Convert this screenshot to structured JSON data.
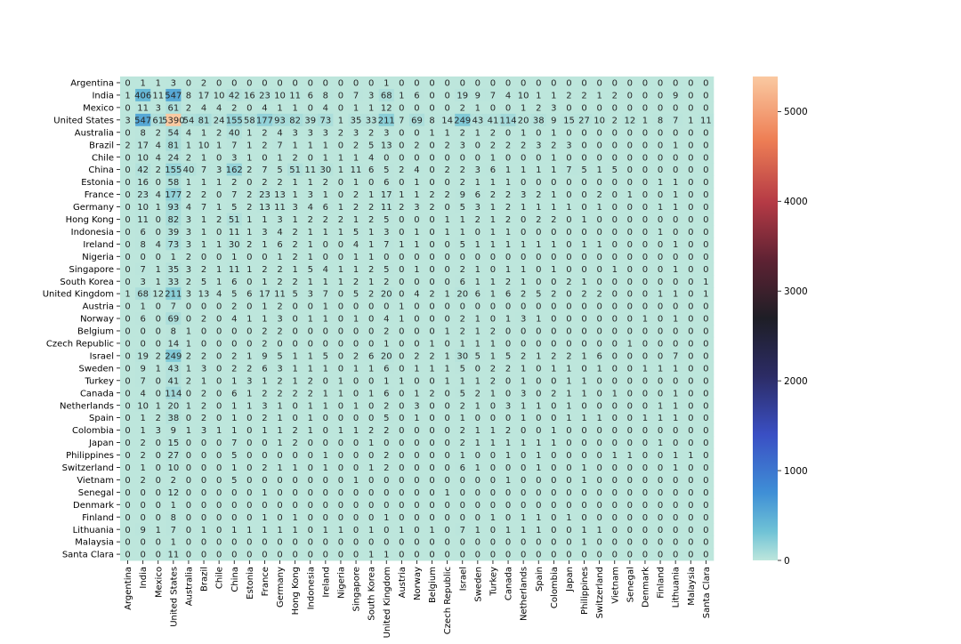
{
  "chart_data": {
    "type": "heatmap",
    "title": "",
    "xlabel": "",
    "ylabel": "",
    "rows": [
      "Argentina",
      "India",
      "Mexico",
      "United States",
      "Australia",
      "Brazil",
      "Chile",
      "China",
      "Estonia",
      "France",
      "Germany",
      "Hong Kong",
      "Indonesia",
      "Ireland",
      "Nigeria",
      "Singapore",
      "South Korea",
      "United Kingdom",
      "Austria",
      "Norway",
      "Belgium",
      "Czech Republic",
      "Israel",
      "Sweden",
      "Turkey",
      "Canada",
      "Netherlands",
      "Spain",
      "Colombia",
      "Japan",
      "Philippines",
      "Switzerland",
      "Vietnam",
      "Senegal",
      "Denmark",
      "Finland",
      "Lithuania",
      "Malaysia",
      "Santa Clara"
    ],
    "columns": [
      "Argentina",
      "India",
      "Mexico",
      "United States",
      "Australia",
      "Brazil",
      "Chile",
      "China",
      "Estonia",
      "France",
      "Germany",
      "Hong Kong",
      "Indonesia",
      "Ireland",
      "Nigeria",
      "Singapore",
      "South Korea",
      "United Kingdom",
      "Austria",
      "Norway",
      "Belgium",
      "Czech Republic",
      "Israel",
      "Sweden",
      "Turkey",
      "Canada",
      "Netherlands",
      "Spain",
      "Colombia",
      "Japan",
      "Philippines",
      "Switzerland",
      "Vietnam",
      "Senegal",
      "Denmark",
      "Finland",
      "Lithuania",
      "Malaysia",
      "Santa Clara"
    ],
    "values": [
      [
        0,
        1,
        1,
        3,
        0,
        2,
        0,
        0,
        0,
        0,
        0,
        0,
        0,
        0,
        0,
        0,
        0,
        1,
        0,
        0,
        0,
        0,
        0,
        0,
        0,
        0,
        0,
        0,
        0,
        0,
        0,
        0,
        0,
        0,
        0,
        0,
        0,
        0,
        0
      ],
      [
        1,
        406,
        11,
        547,
        8,
        17,
        10,
        42,
        16,
        23,
        10,
        11,
        6,
        8,
        0,
        7,
        3,
        68,
        1,
        6,
        0,
        0,
        19,
        9,
        7,
        4,
        10,
        1,
        1,
        2,
        2,
        1,
        2,
        0,
        0,
        0,
        9,
        0,
        0
      ],
      [
        0,
        11,
        3,
        61,
        2,
        4,
        4,
        2,
        0,
        4,
        1,
        1,
        0,
        4,
        0,
        1,
        1,
        12,
        0,
        0,
        0,
        0,
        2,
        1,
        0,
        0,
        1,
        2,
        3,
        0,
        0,
        0,
        0,
        0,
        0,
        0,
        0,
        0,
        0
      ],
      [
        3,
        547,
        61,
        5390,
        54,
        81,
        24,
        155,
        58,
        177,
        93,
        82,
        39,
        73,
        1,
        35,
        33,
        211,
        7,
        69,
        8,
        14,
        249,
        43,
        41,
        114,
        20,
        38,
        9,
        15,
        27,
        10,
        2,
        12,
        1,
        8,
        7,
        1,
        11
      ],
      [
        0,
        8,
        2,
        54,
        4,
        1,
        2,
        40,
        1,
        2,
        4,
        3,
        3,
        3,
        2,
        3,
        2,
        3,
        0,
        0,
        1,
        1,
        2,
        1,
        2,
        0,
        1,
        0,
        1,
        0,
        0,
        0,
        0,
        0,
        0,
        0,
        0,
        0,
        0
      ],
      [
        2,
        17,
        4,
        81,
        1,
        10,
        1,
        7,
        1,
        2,
        7,
        1,
        1,
        1,
        0,
        2,
        5,
        13,
        0,
        2,
        0,
        2,
        3,
        0,
        2,
        2,
        2,
        3,
        2,
        3,
        0,
        0,
        0,
        0,
        0,
        0,
        1,
        0,
        0
      ],
      [
        0,
        10,
        4,
        24,
        2,
        1,
        0,
        3,
        1,
        0,
        1,
        2,
        0,
        1,
        1,
        1,
        4,
        0,
        0,
        0,
        0,
        0,
        0,
        0,
        1,
        0,
        0,
        0,
        1,
        0,
        0,
        0,
        0,
        0,
        0,
        0,
        0,
        0,
        0
      ],
      [
        0,
        42,
        2,
        155,
        40,
        7,
        3,
        162,
        2,
        7,
        5,
        51,
        11,
        30,
        1,
        11,
        6,
        5,
        2,
        4,
        0,
        2,
        2,
        3,
        6,
        1,
        1,
        1,
        1,
        7,
        5,
        1,
        5,
        0,
        0,
        0,
        0,
        0,
        0
      ],
      [
        0,
        16,
        0,
        58,
        1,
        1,
        1,
        2,
        0,
        2,
        2,
        1,
        1,
        2,
        0,
        1,
        0,
        6,
        0,
        1,
        0,
        0,
        2,
        1,
        1,
        1,
        0,
        0,
        0,
        0,
        0,
        0,
        0,
        0,
        0,
        1,
        1,
        0,
        0
      ],
      [
        0,
        23,
        4,
        177,
        2,
        2,
        0,
        7,
        2,
        23,
        13,
        1,
        3,
        1,
        0,
        2,
        1,
        17,
        1,
        1,
        2,
        2,
        9,
        6,
        2,
        2,
        3,
        2,
        1,
        0,
        0,
        2,
        0,
        1,
        0,
        0,
        1,
        0,
        0
      ],
      [
        0,
        10,
        1,
        93,
        4,
        7,
        1,
        5,
        2,
        13,
        11,
        3,
        4,
        6,
        1,
        2,
        2,
        11,
        2,
        3,
        2,
        0,
        5,
        3,
        1,
        2,
        1,
        1,
        1,
        1,
        0,
        1,
        0,
        0,
        0,
        1,
        1,
        0,
        0
      ],
      [
        0,
        11,
        0,
        82,
        3,
        1,
        2,
        51,
        1,
        1,
        3,
        1,
        2,
        2,
        2,
        1,
        2,
        5,
        0,
        0,
        0,
        1,
        1,
        2,
        1,
        2,
        0,
        2,
        2,
        0,
        1,
        0,
        0,
        0,
        0,
        0,
        0,
        0,
        0
      ],
      [
        0,
        6,
        0,
        39,
        3,
        1,
        0,
        11,
        1,
        3,
        4,
        2,
        1,
        1,
        1,
        5,
        1,
        3,
        0,
        1,
        0,
        1,
        1,
        0,
        1,
        1,
        0,
        0,
        0,
        0,
        0,
        0,
        0,
        0,
        0,
        1,
        0,
        0,
        0
      ],
      [
        0,
        8,
        4,
        73,
        3,
        1,
        1,
        30,
        2,
        1,
        6,
        2,
        1,
        0,
        0,
        4,
        1,
        7,
        1,
        1,
        0,
        0,
        5,
        1,
        1,
        1,
        1,
        1,
        1,
        0,
        1,
        1,
        0,
        0,
        0,
        0,
        1,
        0,
        0
      ],
      [
        0,
        0,
        0,
        1,
        2,
        0,
        0,
        1,
        0,
        0,
        1,
        2,
        1,
        0,
        0,
        1,
        1,
        0,
        0,
        0,
        0,
        0,
        0,
        0,
        0,
        0,
        0,
        0,
        0,
        0,
        0,
        0,
        0,
        0,
        0,
        0,
        0,
        0,
        0
      ],
      [
        0,
        7,
        1,
        35,
        3,
        2,
        1,
        11,
        1,
        2,
        2,
        1,
        5,
        4,
        1,
        1,
        2,
        5,
        0,
        1,
        0,
        0,
        2,
        1,
        0,
        1,
        1,
        0,
        1,
        0,
        0,
        0,
        1,
        0,
        0,
        0,
        1,
        0,
        0
      ],
      [
        0,
        3,
        1,
        33,
        2,
        5,
        1,
        6,
        0,
        1,
        2,
        2,
        1,
        1,
        1,
        2,
        1,
        2,
        0,
        0,
        0,
        0,
        6,
        1,
        1,
        2,
        1,
        0,
        0,
        2,
        1,
        0,
        0,
        0,
        0,
        0,
        0,
        0,
        1
      ],
      [
        1,
        68,
        12,
        211,
        3,
        13,
        4,
        5,
        6,
        17,
        11,
        5,
        3,
        7,
        0,
        5,
        2,
        20,
        0,
        4,
        2,
        1,
        20,
        6,
        1,
        6,
        2,
        5,
        2,
        0,
        2,
        2,
        0,
        0,
        0,
        1,
        1,
        0,
        1
      ],
      [
        0,
        1,
        0,
        7,
        0,
        0,
        0,
        2,
        0,
        1,
        2,
        0,
        0,
        1,
        0,
        0,
        0,
        0,
        1,
        0,
        0,
        0,
        0,
        0,
        0,
        0,
        0,
        0,
        0,
        0,
        0,
        0,
        0,
        0,
        0,
        0,
        0,
        0,
        0
      ],
      [
        0,
        6,
        0,
        69,
        0,
        2,
        0,
        4,
        1,
        1,
        3,
        0,
        1,
        1,
        0,
        1,
        0,
        4,
        1,
        0,
        0,
        0,
        2,
        1,
        0,
        1,
        3,
        1,
        0,
        0,
        0,
        0,
        0,
        0,
        1,
        0,
        1,
        0,
        0
      ],
      [
        0,
        0,
        0,
        8,
        1,
        0,
        0,
        0,
        0,
        2,
        2,
        0,
        0,
        0,
        0,
        0,
        0,
        2,
        0,
        0,
        0,
        1,
        2,
        1,
        2,
        0,
        0,
        0,
        0,
        0,
        0,
        0,
        0,
        0,
        0,
        0,
        0,
        0,
        0
      ],
      [
        0,
        0,
        0,
        14,
        1,
        0,
        0,
        0,
        0,
        2,
        0,
        0,
        0,
        0,
        0,
        0,
        0,
        1,
        0,
        0,
        1,
        0,
        1,
        1,
        1,
        0,
        0,
        0,
        0,
        0,
        0,
        0,
        0,
        1,
        0,
        0,
        0,
        0,
        0
      ],
      [
        0,
        19,
        2,
        249,
        2,
        2,
        0,
        2,
        1,
        9,
        5,
        1,
        1,
        5,
        0,
        2,
        6,
        20,
        0,
        2,
        2,
        1,
        30,
        5,
        1,
        5,
        2,
        1,
        2,
        2,
        1,
        6,
        0,
        0,
        0,
        0,
        7,
        0,
        0
      ],
      [
        0,
        9,
        1,
        43,
        1,
        3,
        0,
        2,
        2,
        6,
        3,
        1,
        1,
        1,
        0,
        1,
        1,
        6,
        0,
        1,
        1,
        1,
        5,
        0,
        2,
        2,
        1,
        0,
        1,
        1,
        0,
        1,
        0,
        0,
        1,
        1,
        1,
        0,
        0
      ],
      [
        0,
        7,
        0,
        41,
        2,
        1,
        0,
        1,
        3,
        1,
        2,
        1,
        2,
        0,
        1,
        0,
        0,
        1,
        1,
        0,
        0,
        1,
        1,
        1,
        2,
        0,
        1,
        0,
        0,
        1,
        1,
        0,
        0,
        0,
        0,
        0,
        0,
        0,
        0
      ],
      [
        0,
        4,
        0,
        114,
        0,
        2,
        0,
        6,
        1,
        2,
        2,
        2,
        2,
        1,
        1,
        0,
        1,
        6,
        0,
        1,
        2,
        0,
        5,
        2,
        1,
        0,
        3,
        0,
        2,
        1,
        1,
        0,
        1,
        0,
        0,
        0,
        1,
        0,
        0
      ],
      [
        0,
        10,
        1,
        20,
        1,
        2,
        0,
        1,
        1,
        3,
        1,
        0,
        1,
        1,
        0,
        1,
        0,
        2,
        0,
        3,
        0,
        0,
        2,
        1,
        0,
        3,
        1,
        1,
        0,
        1,
        0,
        0,
        0,
        0,
        0,
        1,
        1,
        0,
        0
      ],
      [
        0,
        1,
        2,
        38,
        0,
        2,
        0,
        1,
        0,
        2,
        1,
        0,
        1,
        0,
        0,
        0,
        0,
        5,
        0,
        1,
        0,
        0,
        1,
        0,
        0,
        0,
        1,
        0,
        0,
        1,
        1,
        1,
        0,
        0,
        1,
        1,
        1,
        0,
        0
      ],
      [
        0,
        1,
        3,
        9,
        1,
        3,
        1,
        1,
        0,
        1,
        1,
        2,
        1,
        0,
        1,
        1,
        2,
        2,
        0,
        0,
        0,
        0,
        2,
        1,
        1,
        2,
        0,
        0,
        1,
        0,
        0,
        0,
        0,
        0,
        0,
        0,
        0,
        0,
        0
      ],
      [
        0,
        2,
        0,
        15,
        0,
        0,
        0,
        7,
        0,
        0,
        1,
        2,
        0,
        0,
        0,
        0,
        1,
        0,
        0,
        0,
        0,
        0,
        2,
        1,
        1,
        1,
        1,
        1,
        1,
        0,
        0,
        0,
        0,
        0,
        0,
        1,
        0,
        0,
        0
      ],
      [
        0,
        2,
        0,
        27,
        0,
        0,
        0,
        5,
        0,
        0,
        0,
        0,
        0,
        1,
        0,
        0,
        0,
        2,
        0,
        0,
        0,
        0,
        1,
        0,
        0,
        1,
        0,
        1,
        0,
        0,
        0,
        0,
        1,
        1,
        0,
        0,
        1,
        1,
        0
      ],
      [
        0,
        1,
        0,
        10,
        0,
        0,
        0,
        1,
        0,
        2,
        1,
        1,
        0,
        1,
        0,
        0,
        1,
        2,
        0,
        0,
        0,
        0,
        6,
        1,
        0,
        0,
        0,
        1,
        0,
        0,
        1,
        0,
        0,
        0,
        0,
        0,
        1,
        0,
        0
      ],
      [
        0,
        2,
        0,
        2,
        0,
        0,
        0,
        5,
        0,
        0,
        0,
        0,
        0,
        0,
        0,
        1,
        0,
        0,
        0,
        0,
        0,
        0,
        0,
        0,
        0,
        1,
        0,
        0,
        0,
        0,
        1,
        0,
        0,
        0,
        0,
        0,
        0,
        0,
        0
      ],
      [
        0,
        0,
        0,
        12,
        0,
        0,
        0,
        0,
        0,
        1,
        0,
        0,
        0,
        0,
        0,
        0,
        0,
        0,
        0,
        0,
        0,
        1,
        0,
        0,
        0,
        0,
        0,
        0,
        0,
        0,
        0,
        0,
        0,
        0,
        0,
        0,
        0,
        0,
        0
      ],
      [
        0,
        0,
        0,
        1,
        0,
        0,
        0,
        0,
        0,
        0,
        0,
        0,
        0,
        0,
        0,
        0,
        0,
        0,
        0,
        0,
        0,
        0,
        0,
        0,
        0,
        0,
        0,
        0,
        0,
        0,
        0,
        0,
        0,
        0,
        0,
        0,
        0,
        0,
        0
      ],
      [
        0,
        0,
        0,
        8,
        0,
        0,
        0,
        0,
        0,
        1,
        0,
        1,
        0,
        0,
        0,
        0,
        0,
        1,
        0,
        0,
        0,
        0,
        0,
        0,
        1,
        0,
        1,
        1,
        0,
        1,
        0,
        0,
        0,
        0,
        0,
        0,
        0,
        0,
        0
      ],
      [
        0,
        9,
        1,
        7,
        0,
        1,
        0,
        1,
        1,
        1,
        1,
        1,
        0,
        1,
        1,
        0,
        1,
        0,
        1,
        0,
        1,
        0,
        7,
        1,
        0,
        1,
        1,
        1,
        0,
        0,
        1,
        1,
        0,
        0,
        0,
        0,
        0,
        0,
        0
      ],
      [
        0,
        0,
        0,
        1,
        0,
        0,
        0,
        0,
        0,
        0,
        0,
        0,
        0,
        0,
        0,
        0,
        0,
        0,
        0,
        0,
        0,
        0,
        0,
        0,
        0,
        0,
        0,
        0,
        0,
        0,
        1,
        0,
        0,
        0,
        0,
        0,
        0,
        0,
        0
      ],
      [
        0,
        0,
        0,
        11,
        0,
        0,
        0,
        0,
        0,
        0,
        0,
        0,
        0,
        0,
        0,
        0,
        1,
        1,
        0,
        0,
        0,
        0,
        0,
        0,
        0,
        0,
        0,
        0,
        0,
        0,
        0,
        0,
        0,
        0,
        0,
        0,
        0,
        0,
        0
      ]
    ],
    "colorbar": {
      "min": 0,
      "max": 5390,
      "ticks": [
        0,
        1000,
        2000,
        3000,
        4000,
        5000
      ],
      "colormap": "icefire"
    },
    "grid": false,
    "legend": "colorbar-right"
  }
}
